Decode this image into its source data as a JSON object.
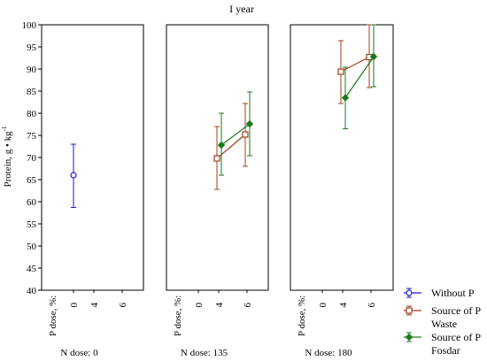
{
  "chart_data": {
    "type": "line",
    "title": "I year",
    "ylabel": "Protein, g • kg",
    "ylabel_sup": "-1",
    "ylim": [
      40,
      100
    ],
    "yticks": [
      40,
      45,
      50,
      55,
      60,
      65,
      70,
      75,
      80,
      85,
      90,
      95,
      100
    ],
    "x_axis_label": "P dose, %:",
    "x_ticks": [
      "0",
      "4",
      "6"
    ],
    "grid": false,
    "legend_position": "right-bottom",
    "series": [
      {
        "name": "Without P",
        "color": "#1a1ad0",
        "marker": "circle"
      },
      {
        "name": "Source of P",
        "name2": "Waste",
        "color": "#a0401a",
        "marker": "square"
      },
      {
        "name": "Source of P",
        "name2": "Fosdar",
        "color": "#1a7a1a",
        "marker": "diamond"
      }
    ],
    "panels": [
      {
        "label": "N dose: 0",
        "points": [
          {
            "series": 0,
            "x": "0",
            "y": 66.0,
            "low": 58.7,
            "high": 73.0
          }
        ]
      },
      {
        "label": "N dose: 135",
        "points": [
          {
            "series": 1,
            "x": "4",
            "y": 69.8,
            "low": 62.8,
            "high": 77.0
          },
          {
            "series": 1,
            "x": "6",
            "y": 75.2,
            "low": 68.0,
            "high": 82.2
          },
          {
            "series": 2,
            "x": "4",
            "y": 72.8,
            "low": 66.0,
            "high": 80.0
          },
          {
            "series": 2,
            "x": "6",
            "y": 77.6,
            "low": 70.4,
            "high": 84.8
          }
        ]
      },
      {
        "label": "N dose: 180",
        "points": [
          {
            "series": 1,
            "x": "4",
            "y": 89.4,
            "low": 82.2,
            "high": 96.4
          },
          {
            "series": 1,
            "x": "6",
            "y": 92.7,
            "low": 85.8,
            "high": 100.0
          },
          {
            "series": 2,
            "x": "4",
            "y": 83.5,
            "low": 76.5,
            "high": 90.4
          },
          {
            "series": 2,
            "x": "6",
            "y": 92.8,
            "low": 86.0,
            "high": 100.0
          }
        ]
      }
    ]
  }
}
